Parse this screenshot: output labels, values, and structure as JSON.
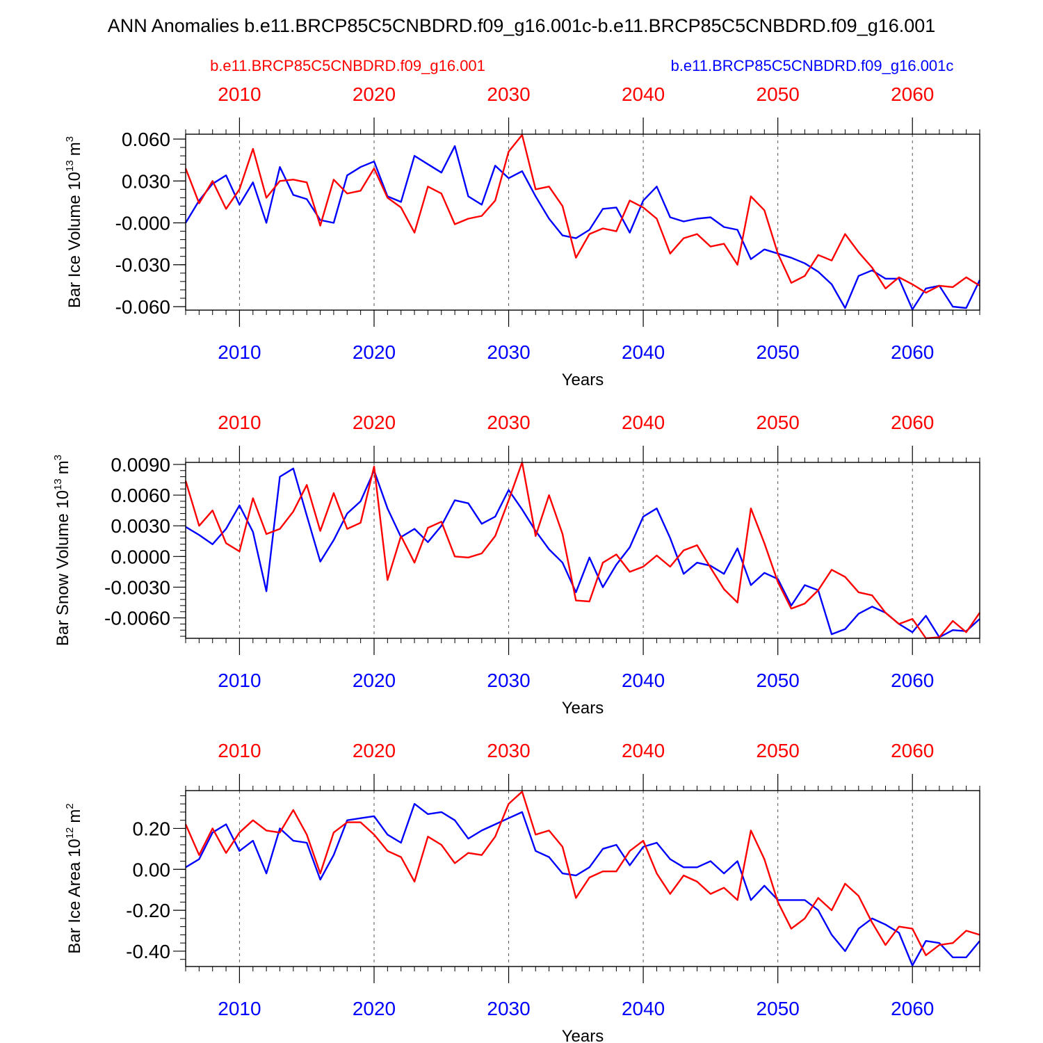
{
  "title": "ANN Anomalies b.e11.BRCP85C5CNBDRD.f09_g16.001c-b.e11.BRCP85C5CNBDRD.f09_g16.001",
  "legend": {
    "left": "b.e11.BRCP85C5CNBDRD.f09_g16.001",
    "right": "b.e11.BRCP85C5CNBDRD.f09_g16.001c"
  },
  "colors": {
    "red": "#ff0000",
    "blue": "#0000ff",
    "axis": "#000000",
    "grid": "#555555"
  },
  "chart_data": [
    {
      "type": "line",
      "ylabel_main": "Bar Ice Volume 10",
      "ylabel_exp": "13",
      "ylabel_unit": "m",
      "ylabel_unit_exp": "3",
      "xlabel": "Years",
      "xlim": [
        2006,
        2065
      ],
      "ylim": [
        -0.0625,
        0.0635
      ],
      "yticks": [
        0.06,
        0.03,
        0.0,
        -0.03,
        -0.06
      ],
      "ytick_labels": [
        "0.060",
        "0.030",
        "-0.000",
        "-0.030",
        "-0.060"
      ],
      "yminor": 0.006,
      "xticks": [
        2010,
        2020,
        2030,
        2040,
        2050,
        2060
      ],
      "xtick_labels": [
        "2010",
        "2020",
        "2030",
        "2040",
        "2050",
        "2060"
      ],
      "x": [
        2006,
        2007,
        2008,
        2009,
        2010,
        2011,
        2012,
        2013,
        2014,
        2015,
        2016,
        2017,
        2018,
        2019,
        2020,
        2021,
        2022,
        2023,
        2024,
        2025,
        2026,
        2027,
        2028,
        2029,
        2030,
        2031,
        2032,
        2033,
        2034,
        2035,
        2036,
        2037,
        2038,
        2039,
        2040,
        2041,
        2042,
        2043,
        2044,
        2045,
        2046,
        2047,
        2048,
        2049,
        2050,
        2051,
        2052,
        2053,
        2054,
        2055,
        2056,
        2057,
        2058,
        2059,
        2060,
        2061,
        2062,
        2063,
        2064,
        2065
      ],
      "series": [
        {
          "name": "b.e11.BRCP85C5CNBDRD.f09_g16.001",
          "color": "red",
          "values": [
            0.039,
            0.014,
            0.03,
            0.01,
            0.024,
            0.053,
            0.018,
            0.03,
            0.031,
            0.029,
            -0.002,
            0.031,
            0.021,
            0.023,
            0.039,
            0.018,
            0.011,
            -0.007,
            0.026,
            0.021,
            -0.001,
            0.003,
            0.005,
            0.016,
            0.051,
            0.063,
            0.024,
            0.026,
            0.012,
            -0.025,
            -0.008,
            -0.004,
            -0.006,
            0.016,
            0.011,
            0.003,
            -0.022,
            -0.011,
            -0.008,
            -0.017,
            -0.015,
            -0.03,
            0.019,
            0.009,
            -0.022,
            -0.043,
            -0.038,
            -0.023,
            -0.027,
            -0.008,
            -0.021,
            -0.032,
            -0.047,
            -0.039,
            -0.044,
            -0.05,
            -0.045,
            -0.046,
            -0.039,
            -0.045
          ]
        },
        {
          "name": "b.e11.BRCP85C5CNBDRD.f09_g16.001c",
          "color": "blue",
          "values": [
            0.0,
            0.016,
            0.028,
            0.034,
            0.013,
            0.029,
            0.0,
            0.04,
            0.02,
            0.017,
            0.002,
            0.0,
            0.034,
            0.04,
            0.044,
            0.019,
            0.015,
            0.048,
            0.042,
            0.036,
            0.055,
            0.019,
            0.013,
            0.041,
            0.032,
            0.037,
            0.019,
            0.003,
            -0.009,
            -0.011,
            -0.005,
            0.01,
            0.011,
            -0.007,
            0.016,
            0.026,
            0.004,
            0.001,
            0.003,
            0.004,
            -0.003,
            -0.005,
            -0.026,
            -0.019,
            -0.022,
            -0.025,
            -0.029,
            -0.035,
            -0.044,
            -0.061,
            -0.038,
            -0.034,
            -0.04,
            -0.04,
            -0.062,
            -0.047,
            -0.045,
            -0.06,
            -0.061,
            -0.041
          ]
        }
      ]
    },
    {
      "type": "line",
      "ylabel_main": "Bar Snow Volume 10",
      "ylabel_exp": "13",
      "ylabel_unit": "m",
      "ylabel_unit_exp": "3",
      "xlabel": "Years",
      "xlim": [
        2006,
        2065
      ],
      "ylim": [
        -0.008,
        0.0092
      ],
      "yticks": [
        0.009,
        0.006,
        0.003,
        0.0,
        -0.003,
        -0.006
      ],
      "ytick_labels": [
        "0.0090",
        "0.0060",
        "0.0030",
        "0.0000",
        "-0.0030",
        "-0.0060"
      ],
      "yminor": 0.0006,
      "xticks": [
        2010,
        2020,
        2030,
        2040,
        2050,
        2060
      ],
      "xtick_labels": [
        "2010",
        "2020",
        "2030",
        "2040",
        "2050",
        "2060"
      ],
      "x": [
        2006,
        2007,
        2008,
        2009,
        2010,
        2011,
        2012,
        2013,
        2014,
        2015,
        2016,
        2017,
        2018,
        2019,
        2020,
        2021,
        2022,
        2023,
        2024,
        2025,
        2026,
        2027,
        2028,
        2029,
        2030,
        2031,
        2032,
        2033,
        2034,
        2035,
        2036,
        2037,
        2038,
        2039,
        2040,
        2041,
        2042,
        2043,
        2044,
        2045,
        2046,
        2047,
        2048,
        2049,
        2050,
        2051,
        2052,
        2053,
        2054,
        2055,
        2056,
        2057,
        2058,
        2059,
        2060,
        2061,
        2062,
        2063,
        2064,
        2065
      ],
      "series": [
        {
          "name": "b.e11.BRCP85C5CNBDRD.f09_g16.001",
          "color": "red",
          "values": [
            0.0074,
            0.003,
            0.0045,
            0.0013,
            0.0005,
            0.0057,
            0.0022,
            0.0027,
            0.0044,
            0.007,
            0.0025,
            0.0062,
            0.0027,
            0.0033,
            0.0088,
            -0.0023,
            0.002,
            -0.0006,
            0.0028,
            0.0034,
            0.0,
            -0.0001,
            0.0003,
            0.002,
            0.0055,
            0.0092,
            0.002,
            0.006,
            0.0022,
            -0.0043,
            -0.0044,
            -0.0006,
            0.0002,
            -0.0015,
            -0.001,
            0.0001,
            -0.001,
            0.0006,
            0.0011,
            -0.0011,
            -0.0032,
            -0.0045,
            0.0047,
            0.0013,
            -0.0025,
            -0.0051,
            -0.0046,
            -0.0033,
            -0.0013,
            -0.002,
            -0.0035,
            -0.0038,
            -0.0055,
            -0.0066,
            -0.0061,
            -0.008,
            -0.0079,
            -0.0063,
            -0.0074,
            -0.0055
          ]
        },
        {
          "name": "b.e11.BRCP85C5CNBDRD.f09_g16.001c",
          "color": "blue",
          "values": [
            0.0029,
            0.0021,
            0.0012,
            0.0027,
            0.005,
            0.0024,
            -0.0034,
            0.0078,
            0.0086,
            0.004,
            -0.0005,
            0.0016,
            0.0042,
            0.0054,
            0.0084,
            0.0047,
            0.0019,
            0.0027,
            0.0014,
            0.003,
            0.0055,
            0.0052,
            0.0032,
            0.0039,
            0.0065,
            0.0046,
            0.0025,
            0.0007,
            -0.0006,
            -0.0035,
            -0.0001,
            -0.003,
            -0.0008,
            0.0009,
            0.0039,
            0.0047,
            0.0018,
            -0.0017,
            -0.0006,
            -0.0009,
            -0.0017,
            0.0008,
            -0.0028,
            -0.0016,
            -0.0022,
            -0.0048,
            -0.0028,
            -0.0033,
            -0.0076,
            -0.0071,
            -0.0056,
            -0.0049,
            -0.0055,
            -0.0066,
            -0.0074,
            -0.0058,
            -0.0079,
            -0.0072,
            -0.0073,
            -0.0061
          ]
        }
      ]
    },
    {
      "type": "line",
      "ylabel_main": "Bar Ice Area 10",
      "ylabel_exp": "12",
      "ylabel_unit": "m",
      "ylabel_unit_exp": "2",
      "xlabel": "Years",
      "xlim": [
        2006,
        2065
      ],
      "ylim": [
        -0.475,
        0.385
      ],
      "yticks": [
        0.2,
        0.0,
        -0.2,
        -0.4
      ],
      "ytick_labels": [
        "0.20",
        "0.00",
        "-0.20",
        "-0.40"
      ],
      "yminor": 0.04,
      "xticks": [
        2010,
        2020,
        2030,
        2040,
        2050,
        2060
      ],
      "xtick_labels": [
        "2010",
        "2020",
        "2030",
        "2040",
        "2050",
        "2060"
      ],
      "x": [
        2006,
        2007,
        2008,
        2009,
        2010,
        2011,
        2012,
        2013,
        2014,
        2015,
        2016,
        2017,
        2018,
        2019,
        2020,
        2021,
        2022,
        2023,
        2024,
        2025,
        2026,
        2027,
        2028,
        2029,
        2030,
        2031,
        2032,
        2033,
        2034,
        2035,
        2036,
        2037,
        2038,
        2039,
        2040,
        2041,
        2042,
        2043,
        2044,
        2045,
        2046,
        2047,
        2048,
        2049,
        2050,
        2051,
        2052,
        2053,
        2054,
        2055,
        2056,
        2057,
        2058,
        2059,
        2060,
        2061,
        2062,
        2063,
        2064,
        2065
      ],
      "series": [
        {
          "name": "b.e11.BRCP85C5CNBDRD.f09_g16.001",
          "color": "red",
          "values": [
            0.22,
            0.07,
            0.2,
            0.08,
            0.18,
            0.24,
            0.19,
            0.18,
            0.29,
            0.17,
            -0.02,
            0.18,
            0.23,
            0.23,
            0.17,
            0.09,
            0.06,
            -0.06,
            0.16,
            0.12,
            0.03,
            0.08,
            0.07,
            0.16,
            0.32,
            0.38,
            0.17,
            0.19,
            0.11,
            -0.14,
            -0.04,
            -0.01,
            -0.01,
            0.09,
            0.14,
            -0.02,
            -0.12,
            -0.03,
            -0.06,
            -0.12,
            -0.09,
            -0.15,
            0.19,
            0.05,
            -0.16,
            -0.29,
            -0.24,
            -0.14,
            -0.2,
            -0.07,
            -0.13,
            -0.26,
            -0.37,
            -0.28,
            -0.29,
            -0.42,
            -0.37,
            -0.36,
            -0.3,
            -0.32
          ]
        },
        {
          "name": "b.e11.BRCP85C5CNBDRD.f09_g16.001c",
          "color": "blue",
          "values": [
            0.01,
            0.05,
            0.18,
            0.22,
            0.09,
            0.14,
            -0.02,
            0.2,
            0.14,
            0.13,
            -0.05,
            0.07,
            0.24,
            0.25,
            0.26,
            0.17,
            0.13,
            0.32,
            0.27,
            0.28,
            0.24,
            0.15,
            0.19,
            0.22,
            0.25,
            0.28,
            0.09,
            0.06,
            -0.02,
            -0.03,
            0.01,
            0.1,
            0.12,
            0.02,
            0.11,
            0.13,
            0.05,
            0.01,
            0.01,
            0.04,
            -0.02,
            0.04,
            -0.15,
            -0.08,
            -0.15,
            -0.15,
            -0.15,
            -0.2,
            -0.32,
            -0.4,
            -0.29,
            -0.24,
            -0.27,
            -0.31,
            -0.47,
            -0.35,
            -0.36,
            -0.43,
            -0.43,
            -0.35
          ]
        }
      ]
    }
  ]
}
